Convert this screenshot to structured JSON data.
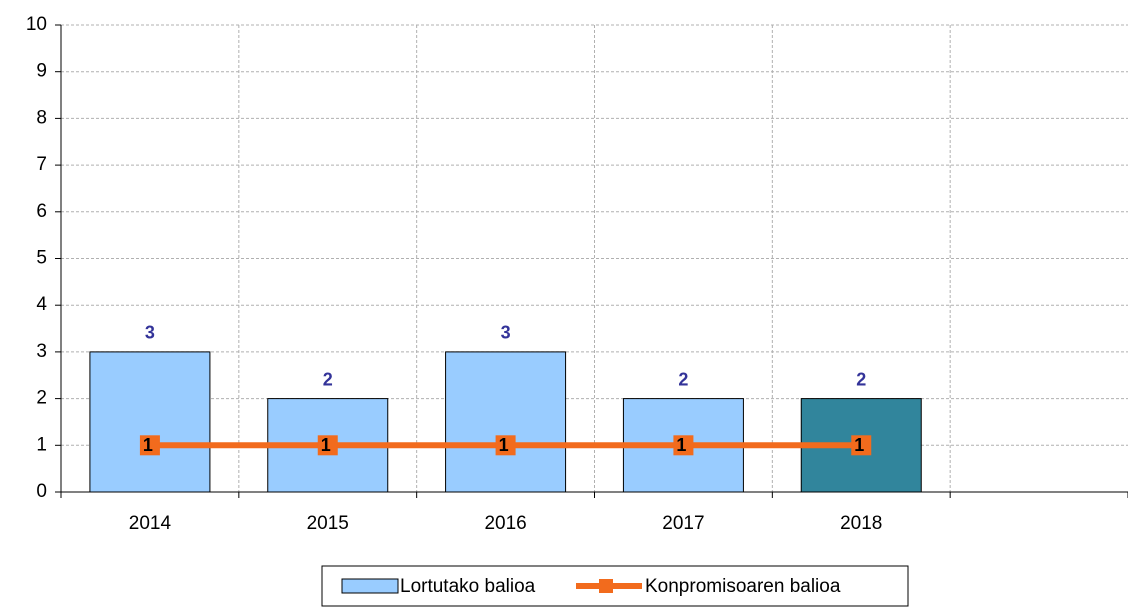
{
  "chart_data": {
    "type": "bar_line",
    "categories": [
      "2014",
      "2015",
      "2016",
      "2017",
      "2018",
      null
    ],
    "series": [
      {
        "name": "Lortutako balioa",
        "type": "bar",
        "color": "#99ccff",
        "colors": [
          "#99ccff",
          "#99ccff",
          "#99ccff",
          "#99ccff",
          "#31859c",
          null
        ],
        "values": [
          3,
          2,
          3,
          2,
          2,
          null
        ]
      },
      {
        "name": "Konpromisoaren balioa",
        "type": "line",
        "color": "#f26b1d",
        "values": [
          1,
          1,
          1,
          1,
          1,
          null
        ]
      }
    ],
    "ylim": [
      0,
      10
    ],
    "yticks": [
      0,
      1,
      2,
      3,
      4,
      5,
      6,
      7,
      8,
      9,
      10
    ],
    "grid": true,
    "legend": "bottom"
  }
}
